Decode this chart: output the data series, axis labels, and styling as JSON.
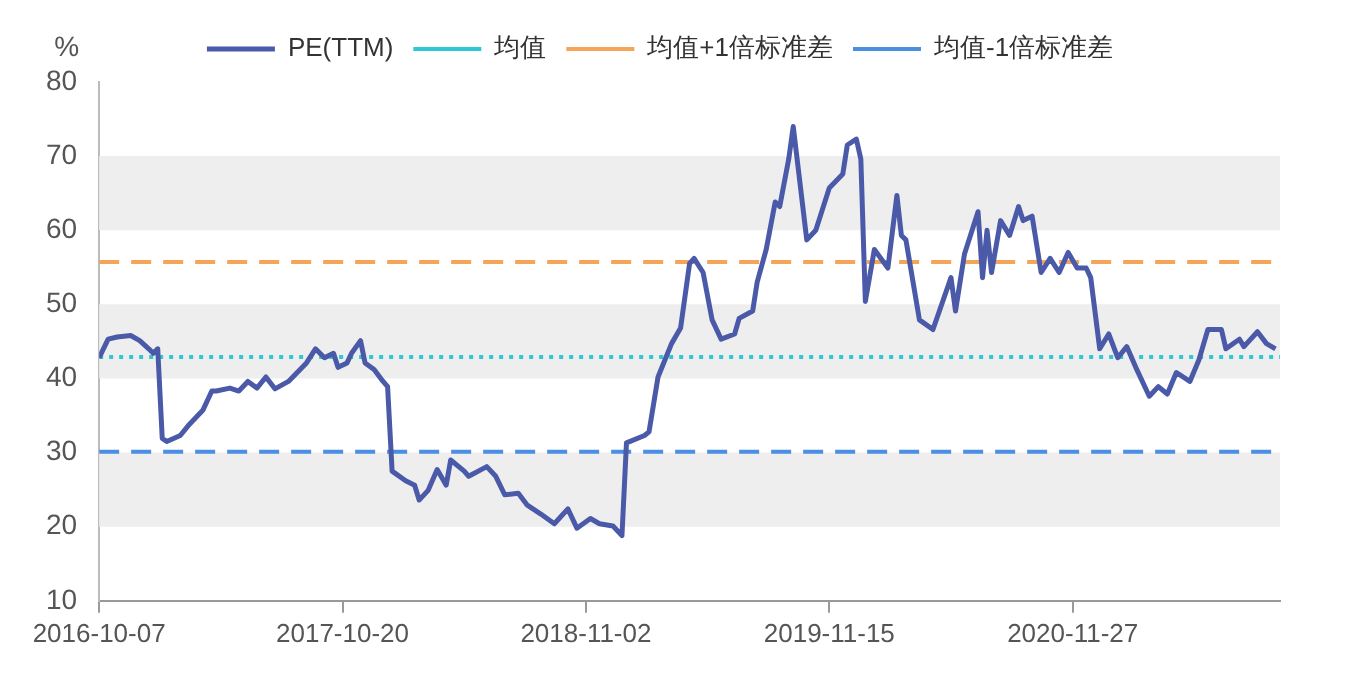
{
  "chart_data": {
    "type": "line",
    "ylabel": "%",
    "x": [
      "2016-10-07",
      "2016-10-21",
      "2016-11-04",
      "2016-11-25",
      "2016-12-09",
      "2016-12-23",
      "2016-12-30",
      "2017-01-06",
      "2017-01-13",
      "2017-01-20",
      "2017-02-10",
      "2017-02-24",
      "2017-03-17",
      "2017-03-31",
      "2017-04-07",
      "2017-04-28",
      "2017-05-12",
      "2017-05-26",
      "2017-06-09",
      "2017-06-23",
      "2017-07-07",
      "2017-07-28",
      "2017-08-25",
      "2017-09-08",
      "2017-09-22",
      "2017-10-06",
      "2017-10-13",
      "2017-10-27",
      "2017-11-03",
      "2017-11-17",
      "2017-11-24",
      "2017-12-08",
      "2017-12-22",
      "2017-12-29",
      "2018-01-05",
      "2018-01-26",
      "2018-02-09",
      "2018-02-16",
      "2018-03-02",
      "2018-03-16",
      "2018-03-30",
      "2018-04-06",
      "2018-04-27",
      "2018-05-04",
      "2018-06-01",
      "2018-06-15",
      "2018-06-29",
      "2018-07-20",
      "2018-08-03",
      "2018-08-24",
      "2018-09-14",
      "2018-10-05",
      "2018-10-19",
      "2018-11-09",
      "2018-11-23",
      "2018-12-14",
      "2018-12-28",
      "2019-01-04",
      "2019-02-01",
      "2019-02-08",
      "2019-02-22",
      "2019-03-15",
      "2019-03-29",
      "2019-04-12",
      "2019-04-19",
      "2019-05-03",
      "2019-05-17",
      "2019-05-31",
      "2019-06-21",
      "2019-06-28",
      "2019-07-19",
      "2019-07-26",
      "2019-08-09",
      "2019-08-23",
      "2019-08-30",
      "2019-09-13",
      "2019-09-20",
      "2019-10-11",
      "2019-10-25",
      "2019-11-15",
      "2019-12-06",
      "2019-12-13",
      "2019-12-27",
      "2020-01-03",
      "2020-01-10",
      "2020-01-24",
      "2020-02-14",
      "2020-02-28",
      "2020-03-06",
      "2020-03-13",
      "2020-04-03",
      "2020-04-24",
      "2020-05-22",
      "2020-05-29",
      "2020-06-12",
      "2020-07-03",
      "2020-07-10",
      "2020-07-17",
      "2020-07-24",
      "2020-08-07",
      "2020-08-21",
      "2020-09-04",
      "2020-09-11",
      "2020-09-25",
      "2020-10-09",
      "2020-10-23",
      "2020-11-06",
      "2020-11-20",
      "2020-12-04",
      "2020-12-18",
      "2020-12-25",
      "2021-01-08",
      "2021-01-22",
      "2021-02-05",
      "2021-02-19",
      "2021-03-05",
      "2021-03-26",
      "2021-04-09",
      "2021-04-23",
      "2021-05-07",
      "2021-05-28",
      "2021-06-11",
      "2021-06-25",
      "2021-07-16",
      "2021-07-23",
      "2021-08-13",
      "2021-08-20",
      "2021-09-10",
      "2021-09-24",
      "2021-10-08"
    ],
    "series": [
      {
        "name": "PE(TTM)",
        "color": "#4a5aa8",
        "values": [
          42.8,
          45.3,
          45.6,
          45.8,
          45.1,
          44.0,
          43.4,
          44.0,
          31.9,
          31.5,
          32.3,
          33.8,
          35.7,
          38.3,
          38.3,
          38.7,
          38.3,
          39.6,
          38.7,
          40.2,
          38.6,
          39.6,
          42.1,
          44.0,
          42.8,
          43.4,
          41.5,
          42.1,
          43.4,
          45.1,
          42.1,
          41.2,
          39.6,
          38.9,
          27.5,
          26.2,
          25.6,
          23.6,
          24.9,
          27.7,
          25.6,
          29.0,
          27.5,
          26.8,
          28.1,
          26.8,
          24.3,
          24.5,
          22.9,
          21.7,
          20.4,
          22.4,
          19.8,
          21.1,
          20.4,
          20.1,
          18.8,
          31.3,
          32.3,
          32.8,
          40.2,
          44.7,
          46.8,
          55.5,
          56.2,
          54.3,
          47.9,
          45.3,
          46.0,
          48.1,
          49.1,
          53.0,
          57.4,
          63.8,
          63.2,
          69.6,
          74.0,
          58.7,
          60.0,
          65.7,
          67.6,
          71.5,
          72.3,
          69.6,
          50.4,
          57.4,
          54.9,
          64.7,
          59.3,
          58.7,
          47.9,
          46.6,
          53.6,
          49.1,
          56.8,
          62.5,
          53.6,
          60.0,
          54.3,
          61.3,
          59.3,
          63.2,
          61.3,
          61.9,
          54.3,
          56.2,
          54.3,
          57.0,
          54.9,
          54.9,
          53.6,
          44.0,
          46.0,
          42.8,
          44.3,
          41.5,
          37.6,
          38.9,
          37.9,
          40.8,
          39.6,
          42.5,
          46.6,
          46.6,
          44.0,
          45.3,
          44.3,
          46.3,
          44.7,
          44.0
        ]
      }
    ],
    "ref_lines": [
      {
        "axis": "y",
        "value": 42.9,
        "label": "均值",
        "color": "#2ec7d6",
        "line_style": "dotted"
      },
      {
        "axis": "y",
        "value": 55.7,
        "label": "均值+1倍标准差",
        "color": "#f5a55a",
        "line_style": "dashed"
      },
      {
        "axis": "y",
        "value": 30.1,
        "label": "均值-1倍标准差",
        "color": "#4a8fe0",
        "line_style": "dashed"
      }
    ],
    "xlim": [
      "2016-10-07",
      "2021-10-15"
    ],
    "xticks": [
      "2016-10-07",
      "2017-10-20",
      "2018-11-02",
      "2019-11-15",
      "2020-11-27"
    ],
    "bands": [
      {
        "axis": "y",
        "from": 20,
        "to": 30,
        "color": "#eeeeee"
      },
      {
        "axis": "y",
        "from": 40,
        "to": 50,
        "color": "#eeeeee"
      },
      {
        "axis": "y",
        "from": 60,
        "to": 70,
        "color": "#eeeeee"
      }
    ],
    "ylim": [
      10,
      80
    ],
    "yticks": [
      10,
      20,
      30,
      40,
      50,
      60,
      70,
      80
    ],
    "legend": "top",
    "line_style": "solid",
    "marker": "none"
  }
}
